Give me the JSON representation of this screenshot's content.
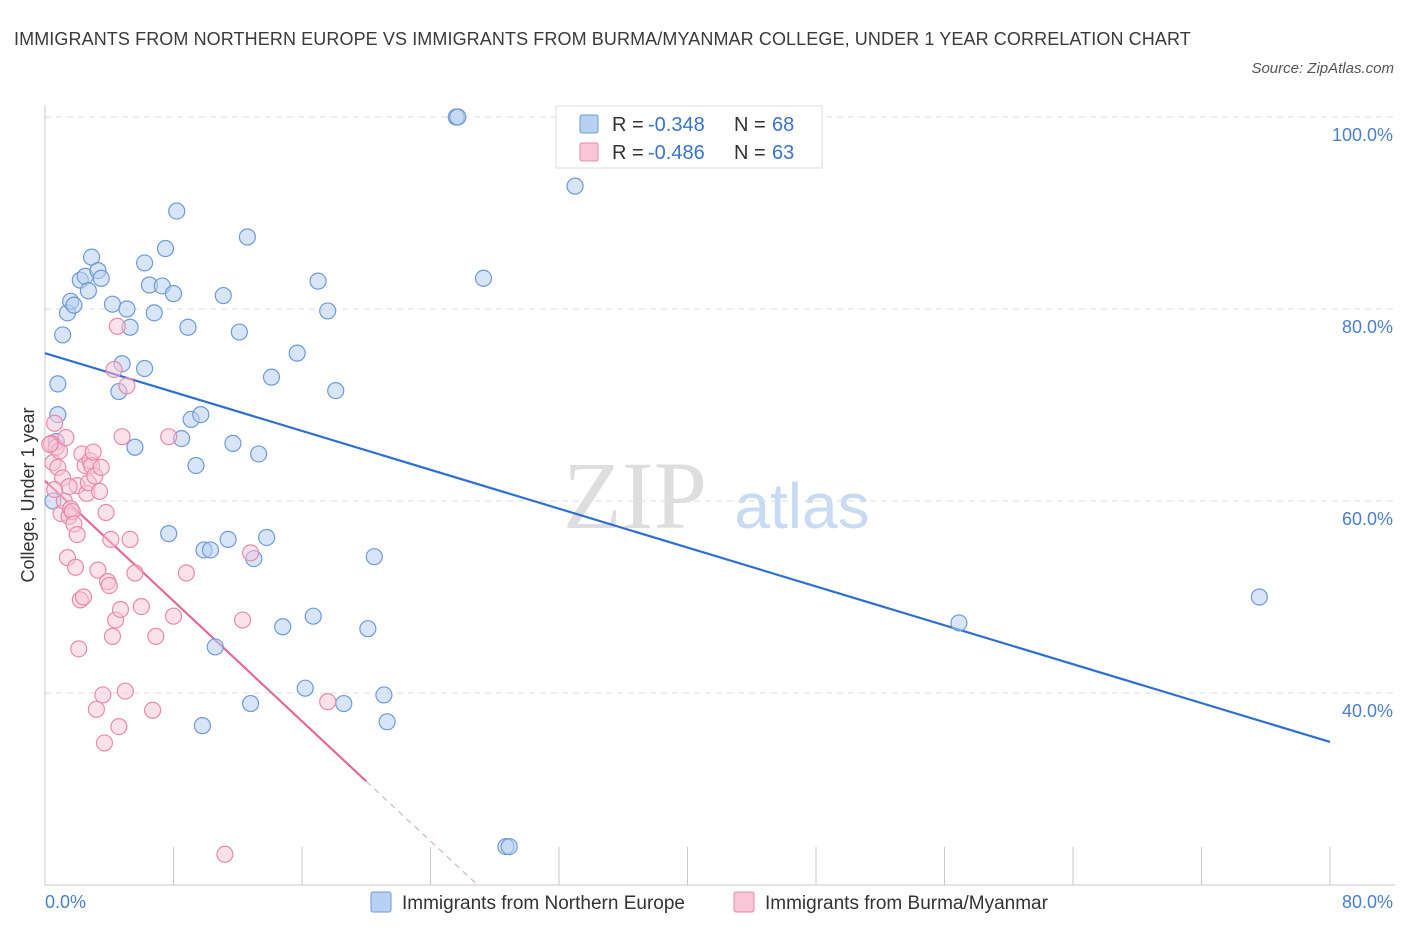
{
  "title": "IMMIGRANTS FROM NORTHERN EUROPE VS IMMIGRANTS FROM BURMA/MYANMAR COLLEGE, UNDER 1 YEAR CORRELATION CHART",
  "source": "Source: ZipAtlas.com",
  "watermark": {
    "zip": "ZIP",
    "atlas": "atlas"
  },
  "colors": {
    "blue_fill": "#b8d0f2",
    "blue_stroke": "#6f9ad8",
    "blue_line": "#2f6fd0",
    "pink_fill": "#f8c6d6",
    "pink_stroke": "#e98aab",
    "pink_line": "#e06b98",
    "grid": "#dddddd",
    "tick_text": "#4a7fc9"
  },
  "legend": {
    "series": [
      {
        "r_label": "R =",
        "r_value": "-0.348",
        "n_label": "N =",
        "n_value": "68"
      },
      {
        "r_label": "R =",
        "r_value": "-0.486",
        "n_label": "N =",
        "n_value": "63"
      }
    ]
  },
  "chart_data": {
    "type": "scatter",
    "title": "IMMIGRANTS FROM NORTHERN EUROPE VS IMMIGRANTS FROM BURMA/MYANMAR COLLEGE, UNDER 1 YEAR CORRELATION CHART",
    "xlabel": "",
    "ylabel": "College, Under 1 year",
    "xlim": [
      0,
      80
    ],
    "ylim": [
      20,
      100
    ],
    "x_tick_labels": [
      "0.0%",
      "80.0%"
    ],
    "y_ticks": [
      40,
      60,
      80,
      100
    ],
    "y_tick_labels": [
      "40.0%",
      "60.0%",
      "80.0%",
      "100.0%"
    ],
    "grid": true,
    "legend_position": "top-center",
    "series": [
      {
        "name": "Immigrants from Northern Europe",
        "r": -0.348,
        "n": 68,
        "trend": {
          "x": [
            0,
            80
          ],
          "y": [
            75.4,
            34.9
          ]
        },
        "points": [
          [
            0.8,
            69.0
          ],
          [
            0.8,
            72.2
          ],
          [
            1.1,
            77.3
          ],
          [
            1.4,
            79.6
          ],
          [
            1.6,
            80.8
          ],
          [
            1.8,
            80.4
          ],
          [
            2.2,
            83.0
          ],
          [
            2.5,
            83.4
          ],
          [
            2.7,
            81.9
          ],
          [
            2.9,
            85.4
          ],
          [
            3.3,
            84.0
          ],
          [
            3.5,
            83.2
          ],
          [
            4.2,
            80.5
          ],
          [
            4.6,
            71.4
          ],
          [
            4.8,
            74.3
          ],
          [
            5.1,
            80.0
          ],
          [
            5.3,
            78.1
          ],
          [
            5.6,
            65.6
          ],
          [
            6.2,
            84.8
          ],
          [
            6.2,
            73.8
          ],
          [
            6.5,
            82.5
          ],
          [
            6.8,
            79.6
          ],
          [
            7.3,
            82.4
          ],
          [
            7.5,
            86.3
          ],
          [
            7.7,
            56.6
          ],
          [
            8.0,
            81.6
          ],
          [
            8.2,
            90.2
          ],
          [
            8.5,
            66.5
          ],
          [
            8.9,
            78.1
          ],
          [
            9.1,
            68.5
          ],
          [
            9.4,
            63.7
          ],
          [
            9.7,
            69.0
          ],
          [
            9.8,
            36.6
          ],
          [
            9.9,
            54.9
          ],
          [
            10.3,
            54.9
          ],
          [
            10.6,
            44.8
          ],
          [
            11.1,
            81.4
          ],
          [
            11.4,
            56.0
          ],
          [
            11.7,
            66.0
          ],
          [
            12.1,
            77.6
          ],
          [
            12.6,
            87.5
          ],
          [
            12.8,
            38.9
          ],
          [
            13.0,
            54.0
          ],
          [
            13.3,
            64.9
          ],
          [
            13.8,
            56.2
          ],
          [
            14.1,
            72.9
          ],
          [
            14.8,
            46.9
          ],
          [
            15.7,
            75.4
          ],
          [
            16.2,
            40.5
          ],
          [
            16.7,
            48.0
          ],
          [
            17.0,
            82.9
          ],
          [
            17.6,
            79.8
          ],
          [
            18.1,
            71.5
          ],
          [
            18.6,
            38.9
          ],
          [
            20.1,
            46.7
          ],
          [
            20.5,
            54.2
          ],
          [
            21.1,
            39.8
          ],
          [
            21.3,
            37.0
          ],
          [
            25.6,
            100.0
          ],
          [
            25.7,
            100.0
          ],
          [
            27.3,
            83.2
          ],
          [
            28.7,
            24.0
          ],
          [
            28.9,
            24.0
          ],
          [
            33.0,
            92.8
          ],
          [
            56.9,
            47.3
          ],
          [
            75.6,
            50.0
          ],
          [
            0.5,
            60.0
          ],
          [
            0.7,
            66.2
          ]
        ]
      },
      {
        "name": "Immigrants from Burma/Myanmar",
        "r": -0.486,
        "n": 63,
        "trend": {
          "x": [
            0,
            20
          ],
          "y": [
            62.1,
            30.8
          ]
        },
        "trend_extension": {
          "x": [
            20,
            27
          ],
          "y": [
            30.8,
            19.9
          ]
        },
        "points": [
          [
            0.4,
            66.0
          ],
          [
            0.5,
            64.0
          ],
          [
            0.6,
            68.1
          ],
          [
            0.7,
            65.6
          ],
          [
            0.8,
            63.5
          ],
          [
            0.9,
            65.2
          ],
          [
            1.0,
            58.7
          ],
          [
            1.1,
            62.4
          ],
          [
            1.2,
            60.0
          ],
          [
            1.3,
            66.6
          ],
          [
            1.4,
            54.1
          ],
          [
            1.5,
            58.4
          ],
          [
            1.6,
            59.2
          ],
          [
            1.7,
            58.9
          ],
          [
            1.8,
            57.6
          ],
          [
            1.9,
            53.1
          ],
          [
            2.0,
            61.6
          ],
          [
            2.1,
            44.6
          ],
          [
            2.2,
            49.7
          ],
          [
            2.3,
            64.9
          ],
          [
            2.4,
            50.0
          ],
          [
            2.5,
            63.7
          ],
          [
            2.6,
            60.8
          ],
          [
            2.7,
            61.9
          ],
          [
            2.8,
            64.2
          ],
          [
            2.9,
            63.7
          ],
          [
            3.0,
            65.1
          ],
          [
            3.1,
            62.6
          ],
          [
            3.2,
            38.3
          ],
          [
            3.3,
            52.8
          ],
          [
            3.4,
            61.0
          ],
          [
            3.5,
            63.5
          ],
          [
            3.6,
            39.8
          ],
          [
            3.7,
            34.8
          ],
          [
            3.8,
            58.8
          ],
          [
            3.9,
            51.6
          ],
          [
            4.0,
            51.2
          ],
          [
            4.1,
            56.0
          ],
          [
            4.2,
            45.9
          ],
          [
            4.3,
            73.7
          ],
          [
            4.4,
            47.6
          ],
          [
            4.5,
            78.2
          ],
          [
            4.6,
            36.5
          ],
          [
            4.7,
            48.7
          ],
          [
            4.8,
            66.7
          ],
          [
            5.0,
            40.2
          ],
          [
            5.1,
            72.0
          ],
          [
            5.3,
            56.0
          ],
          [
            5.6,
            52.5
          ],
          [
            6.0,
            49.0
          ],
          [
            6.7,
            38.2
          ],
          [
            6.9,
            45.9
          ],
          [
            7.7,
            66.7
          ],
          [
            8.0,
            48.0
          ],
          [
            8.8,
            52.5
          ],
          [
            11.2,
            23.2
          ],
          [
            12.3,
            47.6
          ],
          [
            12.8,
            54.6
          ],
          [
            17.6,
            39.1
          ],
          [
            0.3,
            65.9
          ],
          [
            0.6,
            61.2
          ],
          [
            1.5,
            61.5
          ],
          [
            2.0,
            56.5
          ]
        ]
      }
    ]
  }
}
